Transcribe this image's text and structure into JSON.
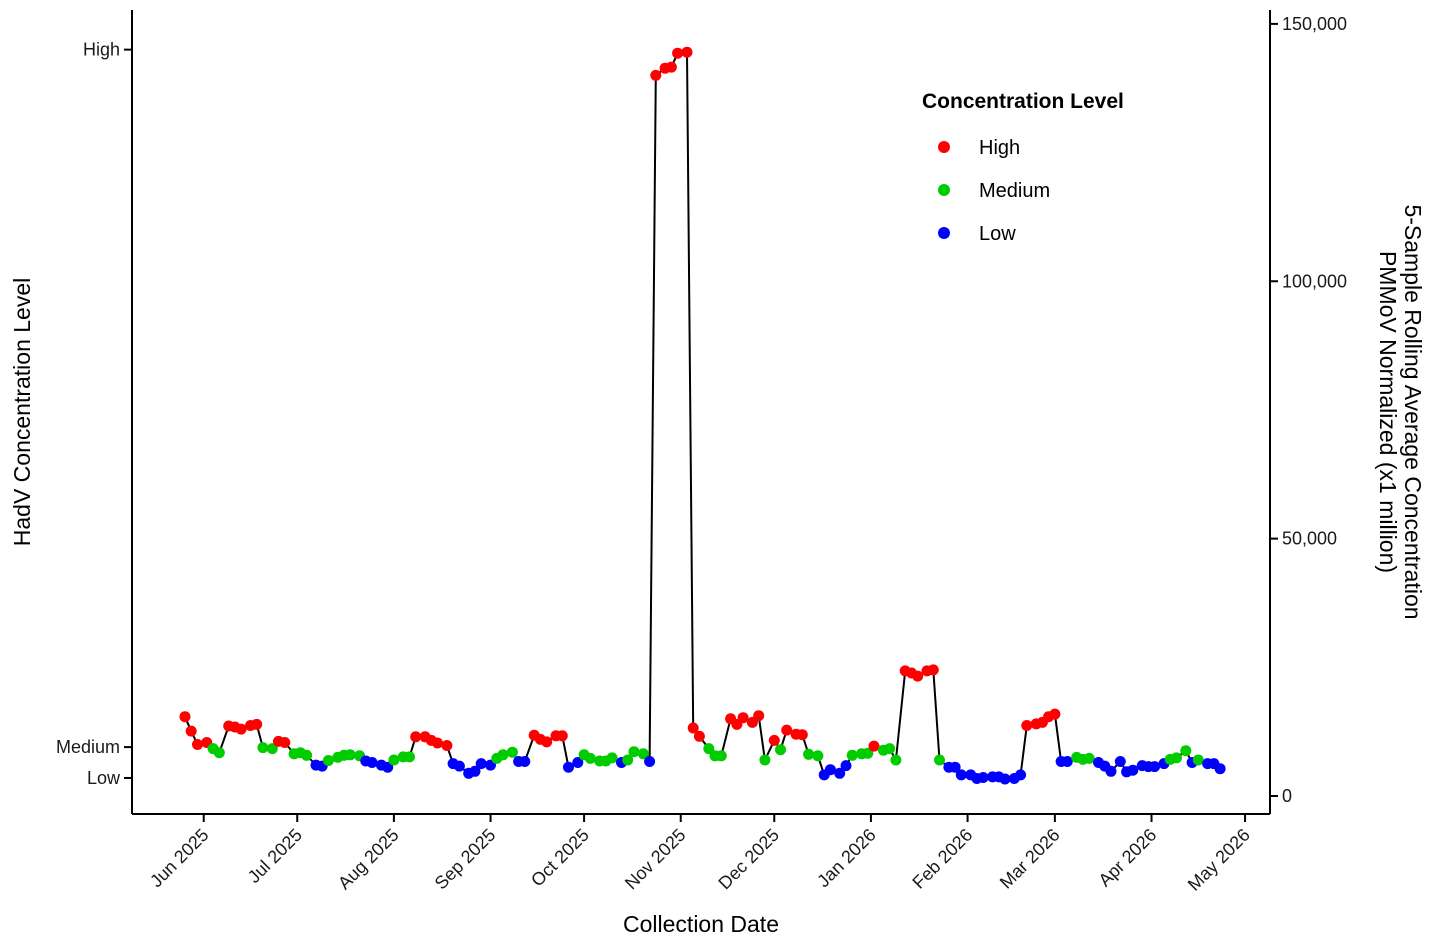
{
  "chart_data": {
    "type": "line",
    "xlabel": "Collection Date",
    "ylabel_left": "HadV Concentration Level",
    "ylabel_right": [
      "5-Sample Rolling Average Concentration",
      "PMMoV Normalized (x1 million)"
    ],
    "x_ticks": [
      {
        "date": "2025-06-01",
        "label": "Jun 2025"
      },
      {
        "date": "2025-07-01",
        "label": "Jul 2025"
      },
      {
        "date": "2025-08-01",
        "label": "Aug 2025"
      },
      {
        "date": "2025-09-01",
        "label": "Sep 2025"
      },
      {
        "date": "2025-10-01",
        "label": "Oct 2025"
      },
      {
        "date": "2025-11-01",
        "label": "Nov 2025"
      },
      {
        "date": "2025-12-01",
        "label": "Dec 2025"
      },
      {
        "date": "2026-01-01",
        "label": "Jan 2026"
      },
      {
        "date": "2026-02-01",
        "label": "Feb 2026"
      },
      {
        "date": "2026-03-01",
        "label": "Mar 2026"
      },
      {
        "date": "2026-04-01",
        "label": "Apr 2026"
      },
      {
        "date": "2026-05-01",
        "label": "May 2026"
      }
    ],
    "xlim": [
      "2025-05-09",
      "2026-05-09"
    ],
    "left_ticks": [
      {
        "label": "Low",
        "value": 3500
      },
      {
        "label": "Medium",
        "value": 9500
      },
      {
        "label": "High",
        "value": 145000
      }
    ],
    "right_ticks": [
      {
        "label": "0",
        "value": 0
      },
      {
        "label": "50,000",
        "value": 50000
      },
      {
        "label": "100,000",
        "value": 100000
      },
      {
        "label": "150,000",
        "value": 150000
      }
    ],
    "ylim": [
      -3500,
      152700
    ],
    "legend": {
      "title": "Concentration Level",
      "position": "top-right",
      "items": [
        {
          "key": "High",
          "label": "High",
          "color": "#ff0000"
        },
        {
          "key": "Medium",
          "label": "Medium",
          "color": "#00cc00"
        },
        {
          "key": "Low",
          "label": "Low",
          "color": "#0000ff"
        }
      ]
    },
    "line_color": "#000000",
    "points": [
      [
        "2025-05-26",
        15400,
        "High"
      ],
      [
        "2025-05-28",
        12600,
        "High"
      ],
      [
        "2025-05-30",
        10000,
        "High"
      ],
      [
        "2025-06-02",
        10400,
        "High"
      ],
      [
        "2025-06-04",
        9200,
        "Medium"
      ],
      [
        "2025-06-06",
        8400,
        "Medium"
      ],
      [
        "2025-06-09",
        13600,
        "High"
      ],
      [
        "2025-06-11",
        13400,
        "High"
      ],
      [
        "2025-06-13",
        13000,
        "High"
      ],
      [
        "2025-06-16",
        13700,
        "High"
      ],
      [
        "2025-06-18",
        13900,
        "High"
      ],
      [
        "2025-06-20",
        9400,
        "Medium"
      ],
      [
        "2025-06-23",
        9200,
        "Medium"
      ],
      [
        "2025-06-25",
        10600,
        "High"
      ],
      [
        "2025-06-27",
        10400,
        "High"
      ],
      [
        "2025-06-30",
        8200,
        "Medium"
      ],
      [
        "2025-07-02",
        8400,
        "Medium"
      ],
      [
        "2025-07-04",
        7900,
        "Medium"
      ],
      [
        "2025-07-07",
        6000,
        "Low"
      ],
      [
        "2025-07-09",
        5800,
        "Low"
      ],
      [
        "2025-07-11",
        6900,
        "Medium"
      ],
      [
        "2025-07-14",
        7500,
        "Medium"
      ],
      [
        "2025-07-16",
        7900,
        "Medium"
      ],
      [
        "2025-07-18",
        8000,
        "Medium"
      ],
      [
        "2025-07-21",
        7800,
        "Medium"
      ],
      [
        "2025-07-23",
        6800,
        "Low"
      ],
      [
        "2025-07-25",
        6500,
        "Low"
      ],
      [
        "2025-07-28",
        6000,
        "Low"
      ],
      [
        "2025-07-30",
        5600,
        "Low"
      ],
      [
        "2025-08-01",
        7000,
        "Medium"
      ],
      [
        "2025-08-04",
        7600,
        "Medium"
      ],
      [
        "2025-08-06",
        7600,
        "Medium"
      ],
      [
        "2025-08-08",
        11500,
        "High"
      ],
      [
        "2025-08-11",
        11500,
        "High"
      ],
      [
        "2025-08-13",
        10800,
        "High"
      ],
      [
        "2025-08-15",
        10300,
        "High"
      ],
      [
        "2025-08-18",
        9800,
        "High"
      ],
      [
        "2025-08-20",
        6300,
        "Low"
      ],
      [
        "2025-08-22",
        5800,
        "Low"
      ],
      [
        "2025-08-25",
        4400,
        "Low"
      ],
      [
        "2025-08-27",
        4800,
        "Low"
      ],
      [
        "2025-08-29",
        6300,
        "Low"
      ],
      [
        "2025-09-01",
        6000,
        "Low"
      ],
      [
        "2025-09-03",
        7300,
        "Medium"
      ],
      [
        "2025-09-05",
        8000,
        "Medium"
      ],
      [
        "2025-09-08",
        8500,
        "Medium"
      ],
      [
        "2025-09-10",
        6700,
        "Low"
      ],
      [
        "2025-09-12",
        6700,
        "Low"
      ],
      [
        "2025-09-15",
        11800,
        "High"
      ],
      [
        "2025-09-17",
        11000,
        "High"
      ],
      [
        "2025-09-19",
        10500,
        "High"
      ],
      [
        "2025-09-22",
        11700,
        "High"
      ],
      [
        "2025-09-24",
        11700,
        "High"
      ],
      [
        "2025-09-26",
        5600,
        "Low"
      ],
      [
        "2025-09-29",
        6500,
        "Low"
      ],
      [
        "2025-10-01",
        8000,
        "Medium"
      ],
      [
        "2025-10-03",
        7300,
        "Medium"
      ],
      [
        "2025-10-06",
        6800,
        "Medium"
      ],
      [
        "2025-10-08",
        6800,
        "Medium"
      ],
      [
        "2025-10-10",
        7400,
        "Medium"
      ],
      [
        "2025-10-13",
        6500,
        "Low"
      ],
      [
        "2025-10-15",
        7000,
        "Medium"
      ],
      [
        "2025-10-17",
        8600,
        "Medium"
      ],
      [
        "2025-10-20",
        8200,
        "Medium"
      ],
      [
        "2025-10-22",
        6700,
        "Low"
      ],
      [
        "2025-10-24",
        140000,
        "High"
      ],
      [
        "2025-10-27",
        141400,
        "High"
      ],
      [
        "2025-10-29",
        141600,
        "High"
      ],
      [
        "2025-10-31",
        144300,
        "High"
      ],
      [
        "2025-11-03",
        144500,
        "High"
      ],
      [
        "2025-11-05",
        13200,
        "High"
      ],
      [
        "2025-11-07",
        11600,
        "High"
      ],
      [
        "2025-11-10",
        9200,
        "Medium"
      ],
      [
        "2025-11-12",
        7800,
        "Medium"
      ],
      [
        "2025-11-14",
        7800,
        "Medium"
      ],
      [
        "2025-11-17",
        15000,
        "High"
      ],
      [
        "2025-11-19",
        13900,
        "High"
      ],
      [
        "2025-11-21",
        15200,
        "High"
      ],
      [
        "2025-11-24",
        14300,
        "High"
      ],
      [
        "2025-11-26",
        15600,
        "High"
      ],
      [
        "2025-11-28",
        7000,
        "Medium"
      ],
      [
        "2025-12-01",
        10800,
        "High"
      ],
      [
        "2025-12-03",
        9000,
        "Medium"
      ],
      [
        "2025-12-05",
        12800,
        "High"
      ],
      [
        "2025-12-08",
        12000,
        "High"
      ],
      [
        "2025-12-10",
        11900,
        "High"
      ],
      [
        "2025-12-12",
        8100,
        "Medium"
      ],
      [
        "2025-12-15",
        7800,
        "Medium"
      ],
      [
        "2025-12-17",
        4100,
        "Low"
      ],
      [
        "2025-12-19",
        5100,
        "Low"
      ],
      [
        "2025-12-22",
        4400,
        "Low"
      ],
      [
        "2025-12-24",
        5900,
        "Low"
      ],
      [
        "2025-12-26",
        7900,
        "Medium"
      ],
      [
        "2025-12-29",
        8200,
        "Medium"
      ],
      [
        "2025-12-31",
        8300,
        "Medium"
      ],
      [
        "2026-01-02",
        9700,
        "High"
      ],
      [
        "2026-01-05",
        8900,
        "Medium"
      ],
      [
        "2026-01-07",
        9200,
        "Medium"
      ],
      [
        "2026-01-09",
        7000,
        "Medium"
      ],
      [
        "2026-01-12",
        24300,
        "High"
      ],
      [
        "2026-01-14",
        23900,
        "High"
      ],
      [
        "2026-01-16",
        23300,
        "High"
      ],
      [
        "2026-01-19",
        24300,
        "High"
      ],
      [
        "2026-01-21",
        24500,
        "High"
      ],
      [
        "2026-01-23",
        7000,
        "Medium"
      ],
      [
        "2026-01-26",
        5600,
        "Low"
      ],
      [
        "2026-01-28",
        5600,
        "Low"
      ],
      [
        "2026-01-30",
        4100,
        "Low"
      ],
      [
        "2026-02-02",
        4100,
        "Low"
      ],
      [
        "2026-02-04",
        3400,
        "Low"
      ],
      [
        "2026-02-06",
        3600,
        "Low"
      ],
      [
        "2026-02-09",
        3700,
        "Low"
      ],
      [
        "2026-02-11",
        3700,
        "Low"
      ],
      [
        "2026-02-13",
        3300,
        "Low"
      ],
      [
        "2026-02-16",
        3400,
        "Low"
      ],
      [
        "2026-02-18",
        4100,
        "Low"
      ],
      [
        "2026-02-20",
        13700,
        "High"
      ],
      [
        "2026-02-23",
        14000,
        "High"
      ],
      [
        "2026-02-25",
        14300,
        "High"
      ],
      [
        "2026-02-27",
        15400,
        "High"
      ],
      [
        "2026-03-01",
        15900,
        "High"
      ],
      [
        "2026-03-03",
        6700,
        "Low"
      ],
      [
        "2026-03-05",
        6700,
        "Low"
      ],
      [
        "2026-03-08",
        7500,
        "Medium"
      ],
      [
        "2026-03-10",
        7100,
        "Medium"
      ],
      [
        "2026-03-12",
        7300,
        "Medium"
      ],
      [
        "2026-03-15",
        6500,
        "Low"
      ],
      [
        "2026-03-17",
        5800,
        "Low"
      ],
      [
        "2026-03-19",
        4800,
        "Low"
      ],
      [
        "2026-03-22",
        6700,
        "Low"
      ],
      [
        "2026-03-24",
        4700,
        "Low"
      ],
      [
        "2026-03-26",
        5000,
        "Low"
      ],
      [
        "2026-03-29",
        5900,
        "Low"
      ],
      [
        "2026-03-31",
        5700,
        "Low"
      ],
      [
        "2026-04-02",
        5700,
        "Low"
      ],
      [
        "2026-04-05",
        6300,
        "Low"
      ],
      [
        "2026-04-07",
        7100,
        "Medium"
      ],
      [
        "2026-04-09",
        7400,
        "Medium"
      ],
      [
        "2026-04-12",
        8800,
        "Medium"
      ],
      [
        "2026-04-14",
        6500,
        "Low"
      ],
      [
        "2026-04-16",
        7000,
        "Medium"
      ],
      [
        "2026-04-19",
        6300,
        "Low"
      ],
      [
        "2026-04-21",
        6300,
        "Low"
      ],
      [
        "2026-04-23",
        5300,
        "Low"
      ]
    ]
  }
}
